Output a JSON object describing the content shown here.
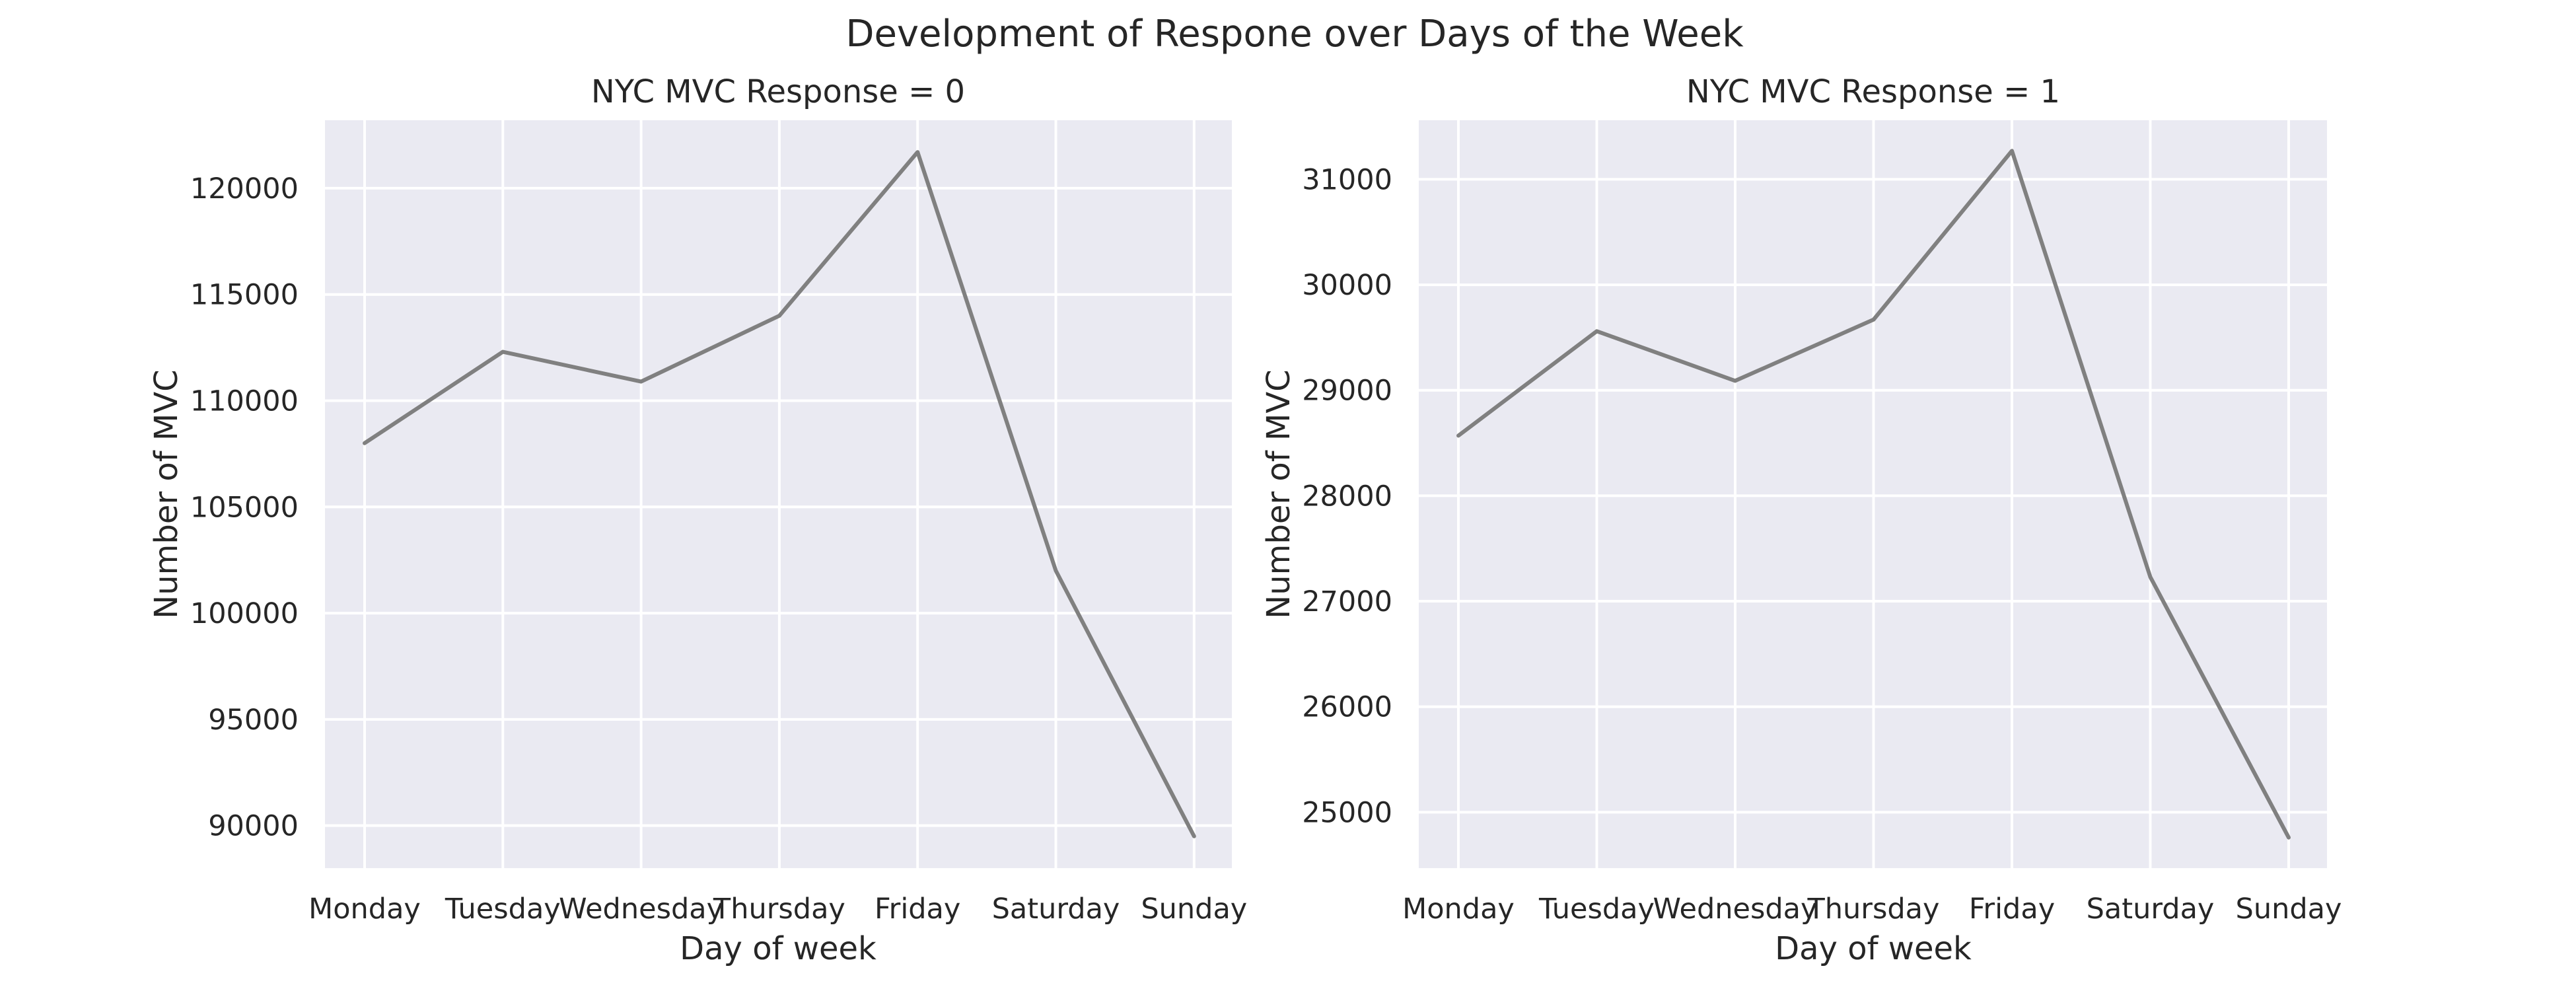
{
  "figure": {
    "suptitle": "Development of Respone over Days of the Week"
  },
  "colors": {
    "plot_background": "#EAEAF2",
    "grid": "#FFFFFF",
    "line": "#808080",
    "text": "#262626"
  },
  "chart_data": [
    {
      "type": "line",
      "title": "NYC MVC Response = 0",
      "xlabel": "Day of week",
      "ylabel": "Number of MVC",
      "categories": [
        "Monday",
        "Tuesday",
        "Wednesday",
        "Thursday",
        "Friday",
        "Saturday",
        "Sunday"
      ],
      "values": [
        108000,
        112300,
        110900,
        114000,
        121700,
        102000,
        89500
      ],
      "ylim": [
        88000,
        123200
      ],
      "yticks": [
        90000,
        95000,
        100000,
        105000,
        110000,
        115000,
        120000
      ],
      "grid": true,
      "legend": "none"
    },
    {
      "type": "line",
      "title": "NYC MVC Response = 1",
      "xlabel": "Day of week",
      "ylabel": "Number of MVC",
      "categories": [
        "Monday",
        "Tuesday",
        "Wednesday",
        "Thursday",
        "Friday",
        "Saturday",
        "Sunday"
      ],
      "values": [
        28570,
        29560,
        29090,
        29670,
        31270,
        27230,
        24760
      ],
      "ylim": [
        24470,
        31560
      ],
      "yticks": [
        25000,
        26000,
        27000,
        28000,
        29000,
        30000,
        31000
      ],
      "grid": true,
      "legend": "none"
    }
  ]
}
